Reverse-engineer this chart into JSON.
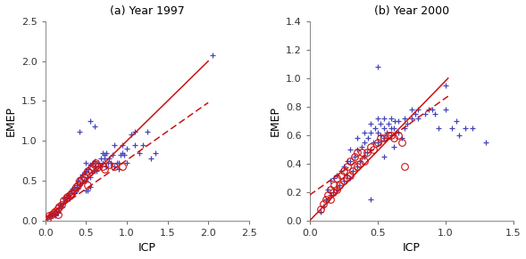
{
  "panel_a": {
    "title": "(a) Year 1997",
    "xlim": [
      0,
      2.5
    ],
    "ylim": [
      0,
      2.5
    ],
    "xticks": [
      0,
      0.5,
      1,
      1.5,
      2,
      2.5
    ],
    "yticks": [
      0,
      0.5,
      1,
      1.5,
      2,
      2.5
    ],
    "xlabel": "ICP",
    "ylabel": "EMEP",
    "blue_plus": [
      [
        0.02,
        0.02
      ],
      [
        0.05,
        0.05
      ],
      [
        0.07,
        0.08
      ],
      [
        0.08,
        0.06
      ],
      [
        0.1,
        0.1
      ],
      [
        0.12,
        0.08
      ],
      [
        0.13,
        0.12
      ],
      [
        0.15,
        0.1
      ],
      [
        0.17,
        0.15
      ],
      [
        0.18,
        0.2
      ],
      [
        0.2,
        0.18
      ],
      [
        0.22,
        0.22
      ],
      [
        0.23,
        0.28
      ],
      [
        0.25,
        0.25
      ],
      [
        0.27,
        0.3
      ],
      [
        0.28,
        0.32
      ],
      [
        0.3,
        0.28
      ],
      [
        0.3,
        0.35
      ],
      [
        0.32,
        0.38
      ],
      [
        0.33,
        0.4
      ],
      [
        0.35,
        0.35
      ],
      [
        0.35,
        0.42
      ],
      [
        0.37,
        0.38
      ],
      [
        0.38,
        0.45
      ],
      [
        0.4,
        0.4
      ],
      [
        0.4,
        0.5
      ],
      [
        0.42,
        0.45
      ],
      [
        0.43,
        0.55
      ],
      [
        0.45,
        0.48
      ],
      [
        0.45,
        0.58
      ],
      [
        0.47,
        0.5
      ],
      [
        0.48,
        0.6
      ],
      [
        0.5,
        0.5
      ],
      [
        0.5,
        0.62
      ],
      [
        0.5,
        0.72
      ],
      [
        0.52,
        0.55
      ],
      [
        0.53,
        0.65
      ],
      [
        0.55,
        0.55
      ],
      [
        0.55,
        0.7
      ],
      [
        0.57,
        0.6
      ],
      [
        0.58,
        0.72
      ],
      [
        0.6,
        0.62
      ],
      [
        0.6,
        0.75
      ],
      [
        0.62,
        0.68
      ],
      [
        0.63,
        0.62
      ],
      [
        0.65,
        0.72
      ],
      [
        0.67,
        0.68
      ],
      [
        0.68,
        0.78
      ],
      [
        0.7,
        0.72
      ],
      [
        0.7,
        0.85
      ],
      [
        0.72,
        0.78
      ],
      [
        0.73,
        0.82
      ],
      [
        0.75,
        0.68
      ],
      [
        0.75,
        0.85
      ],
      [
        0.77,
        0.72
      ],
      [
        0.78,
        0.78
      ],
      [
        0.8,
        0.72
      ],
      [
        0.82,
        0.82
      ],
      [
        0.85,
        0.68
      ],
      [
        0.85,
        0.95
      ],
      [
        0.88,
        0.72
      ],
      [
        0.9,
        0.65
      ],
      [
        0.9,
        0.72
      ],
      [
        0.92,
        0.82
      ],
      [
        0.95,
        0.85
      ],
      [
        0.95,
        0.95
      ],
      [
        0.97,
        0.82
      ],
      [
        1.0,
        0.72
      ],
      [
        1.0,
        0.9
      ],
      [
        1.05,
        1.08
      ],
      [
        1.1,
        0.95
      ],
      [
        1.1,
        1.12
      ],
      [
        1.15,
        0.85
      ],
      [
        1.2,
        0.95
      ],
      [
        1.25,
        1.12
      ],
      [
        1.3,
        0.78
      ],
      [
        1.35,
        0.85
      ],
      [
        0.55,
        1.25
      ],
      [
        0.6,
        1.18
      ],
      [
        0.42,
        1.12
      ],
      [
        0.5,
        0.38
      ],
      [
        0.55,
        0.42
      ],
      [
        2.05,
        2.08
      ],
      [
        0.12,
        0.07
      ],
      [
        0.52,
        0.38
      ]
    ],
    "red_circle": [
      [
        0.02,
        0.02
      ],
      [
        0.05,
        0.06
      ],
      [
        0.08,
        0.08
      ],
      [
        0.1,
        0.1
      ],
      [
        0.12,
        0.12
      ],
      [
        0.15,
        0.15
      ],
      [
        0.17,
        0.18
      ],
      [
        0.2,
        0.2
      ],
      [
        0.22,
        0.25
      ],
      [
        0.25,
        0.28
      ],
      [
        0.27,
        0.3
      ],
      [
        0.3,
        0.32
      ],
      [
        0.32,
        0.35
      ],
      [
        0.35,
        0.38
      ],
      [
        0.37,
        0.42
      ],
      [
        0.4,
        0.45
      ],
      [
        0.42,
        0.5
      ],
      [
        0.45,
        0.52
      ],
      [
        0.47,
        0.55
      ],
      [
        0.5,
        0.58
      ],
      [
        0.52,
        0.62
      ],
      [
        0.55,
        0.65
      ],
      [
        0.57,
        0.68
      ],
      [
        0.6,
        0.7
      ],
      [
        0.62,
        0.72
      ],
      [
        0.65,
        0.68
      ],
      [
        0.7,
        0.68
      ],
      [
        0.72,
        0.65
      ],
      [
        0.78,
        0.7
      ],
      [
        0.85,
        0.68
      ],
      [
        0.95,
        0.68
      ],
      [
        0.52,
        0.45
      ],
      [
        0.15,
        0.08
      ]
    ],
    "line1_slope": 1.0,
    "line1_intercept": 0.0,
    "line2_slope": 0.72,
    "line2_intercept": 0.04,
    "line_xmax": 2.0
  },
  "panel_b": {
    "title": "(b) Year 2000",
    "xlim": [
      0,
      1.5
    ],
    "ylim": [
      0,
      1.4
    ],
    "xticks": [
      0,
      0.5,
      1,
      1.5
    ],
    "yticks": [
      0,
      0.2,
      0.4,
      0.6,
      0.8,
      1.0,
      1.2,
      1.4
    ],
    "xlabel": "ICP",
    "ylabel": "EMEP",
    "blue_plus": [
      [
        0.08,
        0.06
      ],
      [
        0.1,
        0.1
      ],
      [
        0.12,
        0.15
      ],
      [
        0.13,
        0.22
      ],
      [
        0.15,
        0.18
      ],
      [
        0.15,
        0.28
      ],
      [
        0.17,
        0.2
      ],
      [
        0.18,
        0.3
      ],
      [
        0.2,
        0.22
      ],
      [
        0.2,
        0.32
      ],
      [
        0.22,
        0.25
      ],
      [
        0.23,
        0.35
      ],
      [
        0.25,
        0.28
      ],
      [
        0.25,
        0.38
      ],
      [
        0.27,
        0.32
      ],
      [
        0.28,
        0.42
      ],
      [
        0.3,
        0.3
      ],
      [
        0.3,
        0.42
      ],
      [
        0.3,
        0.5
      ],
      [
        0.32,
        0.35
      ],
      [
        0.33,
        0.45
      ],
      [
        0.35,
        0.38
      ],
      [
        0.35,
        0.5
      ],
      [
        0.35,
        0.58
      ],
      [
        0.37,
        0.42
      ],
      [
        0.38,
        0.52
      ],
      [
        0.4,
        0.45
      ],
      [
        0.4,
        0.55
      ],
      [
        0.4,
        0.62
      ],
      [
        0.42,
        0.48
      ],
      [
        0.43,
        0.58
      ],
      [
        0.45,
        0.5
      ],
      [
        0.45,
        0.62
      ],
      [
        0.45,
        0.68
      ],
      [
        0.47,
        0.55
      ],
      [
        0.48,
        0.65
      ],
      [
        0.5,
        0.55
      ],
      [
        0.5,
        0.62
      ],
      [
        0.5,
        0.72
      ],
      [
        0.52,
        0.6
      ],
      [
        0.52,
        0.68
      ],
      [
        0.55,
        0.58
      ],
      [
        0.55,
        0.65
      ],
      [
        0.55,
        0.72
      ],
      [
        0.57,
        0.62
      ],
      [
        0.58,
        0.68
      ],
      [
        0.6,
        0.6
      ],
      [
        0.6,
        0.65
      ],
      [
        0.6,
        0.72
      ],
      [
        0.62,
        0.65
      ],
      [
        0.63,
        0.7
      ],
      [
        0.65,
        0.62
      ],
      [
        0.65,
        0.7
      ],
      [
        0.7,
        0.65
      ],
      [
        0.7,
        0.72
      ],
      [
        0.72,
        0.68
      ],
      [
        0.75,
        0.72
      ],
      [
        0.75,
        0.78
      ],
      [
        0.78,
        0.75
      ],
      [
        0.8,
        0.72
      ],
      [
        0.8,
        0.78
      ],
      [
        0.85,
        0.75
      ],
      [
        0.88,
        0.78
      ],
      [
        0.9,
        0.78
      ],
      [
        0.92,
        0.75
      ],
      [
        0.95,
        0.65
      ],
      [
        1.0,
        0.78
      ],
      [
        1.0,
        0.95
      ],
      [
        1.05,
        0.65
      ],
      [
        1.08,
        0.7
      ],
      [
        1.1,
        0.6
      ],
      [
        1.15,
        0.65
      ],
      [
        1.2,
        0.65
      ],
      [
        1.3,
        0.55
      ],
      [
        0.5,
        1.08
      ],
      [
        0.45,
        0.15
      ],
      [
        0.55,
        0.45
      ],
      [
        0.62,
        0.52
      ],
      [
        0.68,
        0.58
      ]
    ],
    "red_circle": [
      [
        0.08,
        0.08
      ],
      [
        0.1,
        0.12
      ],
      [
        0.12,
        0.15
      ],
      [
        0.13,
        0.18
      ],
      [
        0.15,
        0.15
      ],
      [
        0.15,
        0.22
      ],
      [
        0.17,
        0.2
      ],
      [
        0.18,
        0.25
      ],
      [
        0.2,
        0.22
      ],
      [
        0.2,
        0.3
      ],
      [
        0.22,
        0.25
      ],
      [
        0.23,
        0.32
      ],
      [
        0.25,
        0.28
      ],
      [
        0.25,
        0.35
      ],
      [
        0.27,
        0.3
      ],
      [
        0.28,
        0.38
      ],
      [
        0.3,
        0.32
      ],
      [
        0.3,
        0.42
      ],
      [
        0.32,
        0.35
      ],
      [
        0.33,
        0.45
      ],
      [
        0.35,
        0.38
      ],
      [
        0.35,
        0.48
      ],
      [
        0.37,
        0.4
      ],
      [
        0.38,
        0.48
      ],
      [
        0.4,
        0.42
      ],
      [
        0.42,
        0.48
      ],
      [
        0.45,
        0.52
      ],
      [
        0.47,
        0.5
      ],
      [
        0.5,
        0.55
      ],
      [
        0.52,
        0.58
      ],
      [
        0.55,
        0.58
      ],
      [
        0.58,
        0.6
      ],
      [
        0.6,
        0.6
      ],
      [
        0.62,
        0.58
      ],
      [
        0.65,
        0.6
      ],
      [
        0.68,
        0.55
      ],
      [
        0.7,
        0.38
      ]
    ],
    "line1_slope": 0.98,
    "line1_intercept": 0.0,
    "line2_slope": 0.68,
    "line2_intercept": 0.18,
    "line_xmax": 1.02
  },
  "blue_color": "#4444bb",
  "red_color": "#cc1111",
  "marker_size": 4.5,
  "circle_size": 5.5,
  "line_width": 1.1
}
